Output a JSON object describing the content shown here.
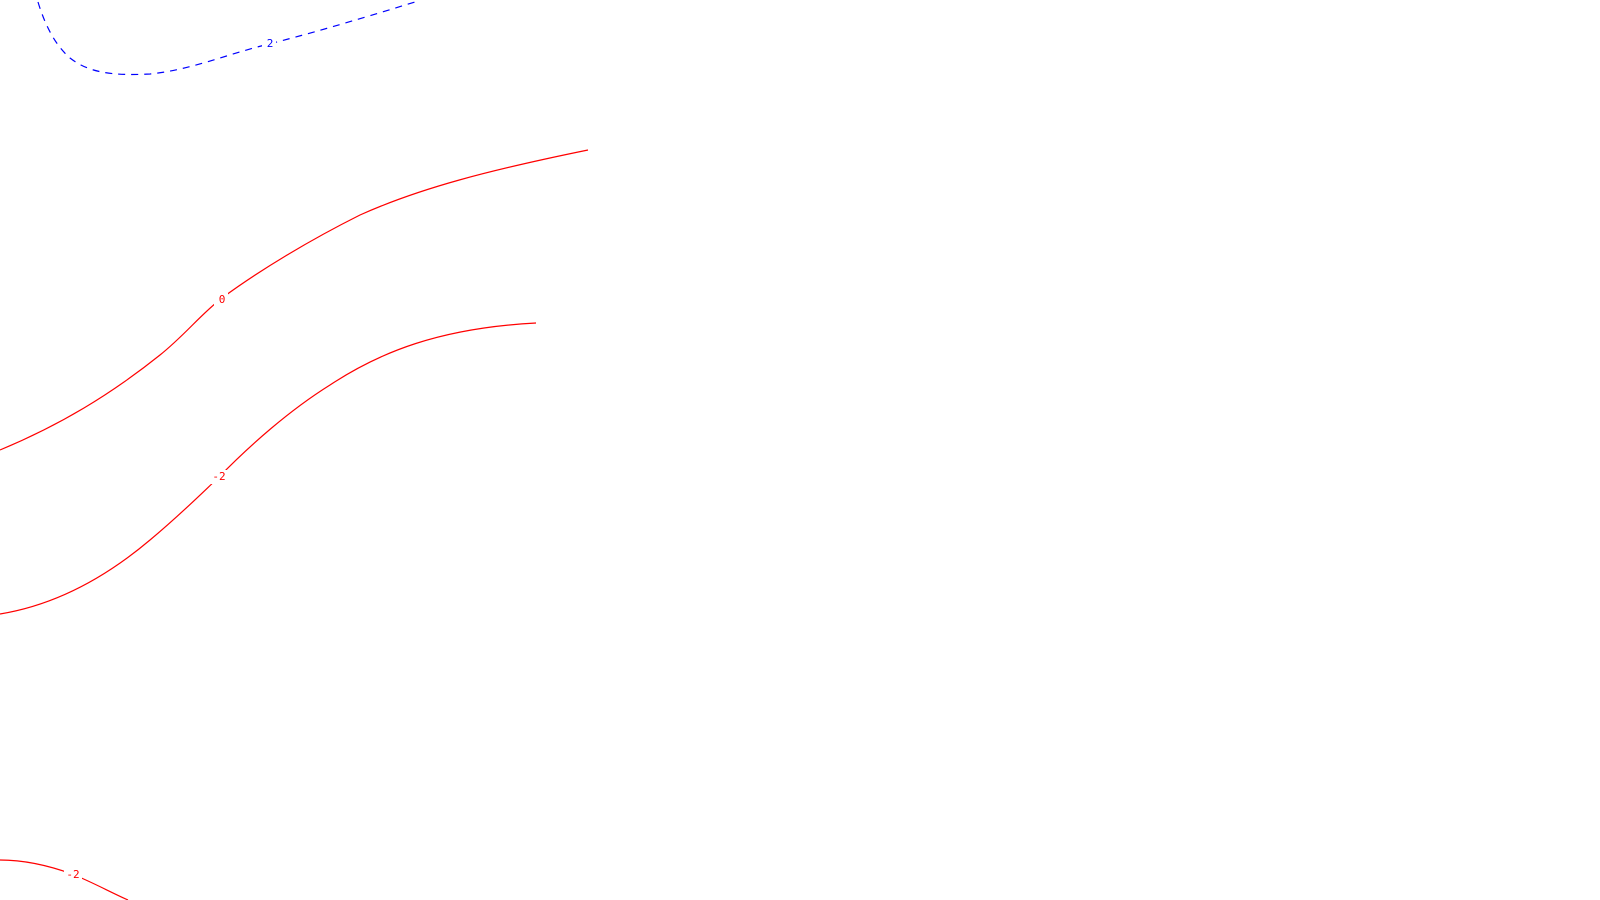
{
  "map": {
    "contours": [
      {
        "id": "contour-top-dashed",
        "label": "2",
        "style": "dashed",
        "color": "#0000ff"
      },
      {
        "id": "contour-zero",
        "label": "0",
        "style": "solid",
        "color": "#ff0000"
      },
      {
        "id": "contour-minus-two-middle",
        "label": "-2",
        "style": "solid",
        "color": "#ff0000"
      },
      {
        "id": "contour-minus-two-bottom",
        "label": "-2",
        "style": "solid",
        "color": "#ff0000"
      }
    ]
  }
}
